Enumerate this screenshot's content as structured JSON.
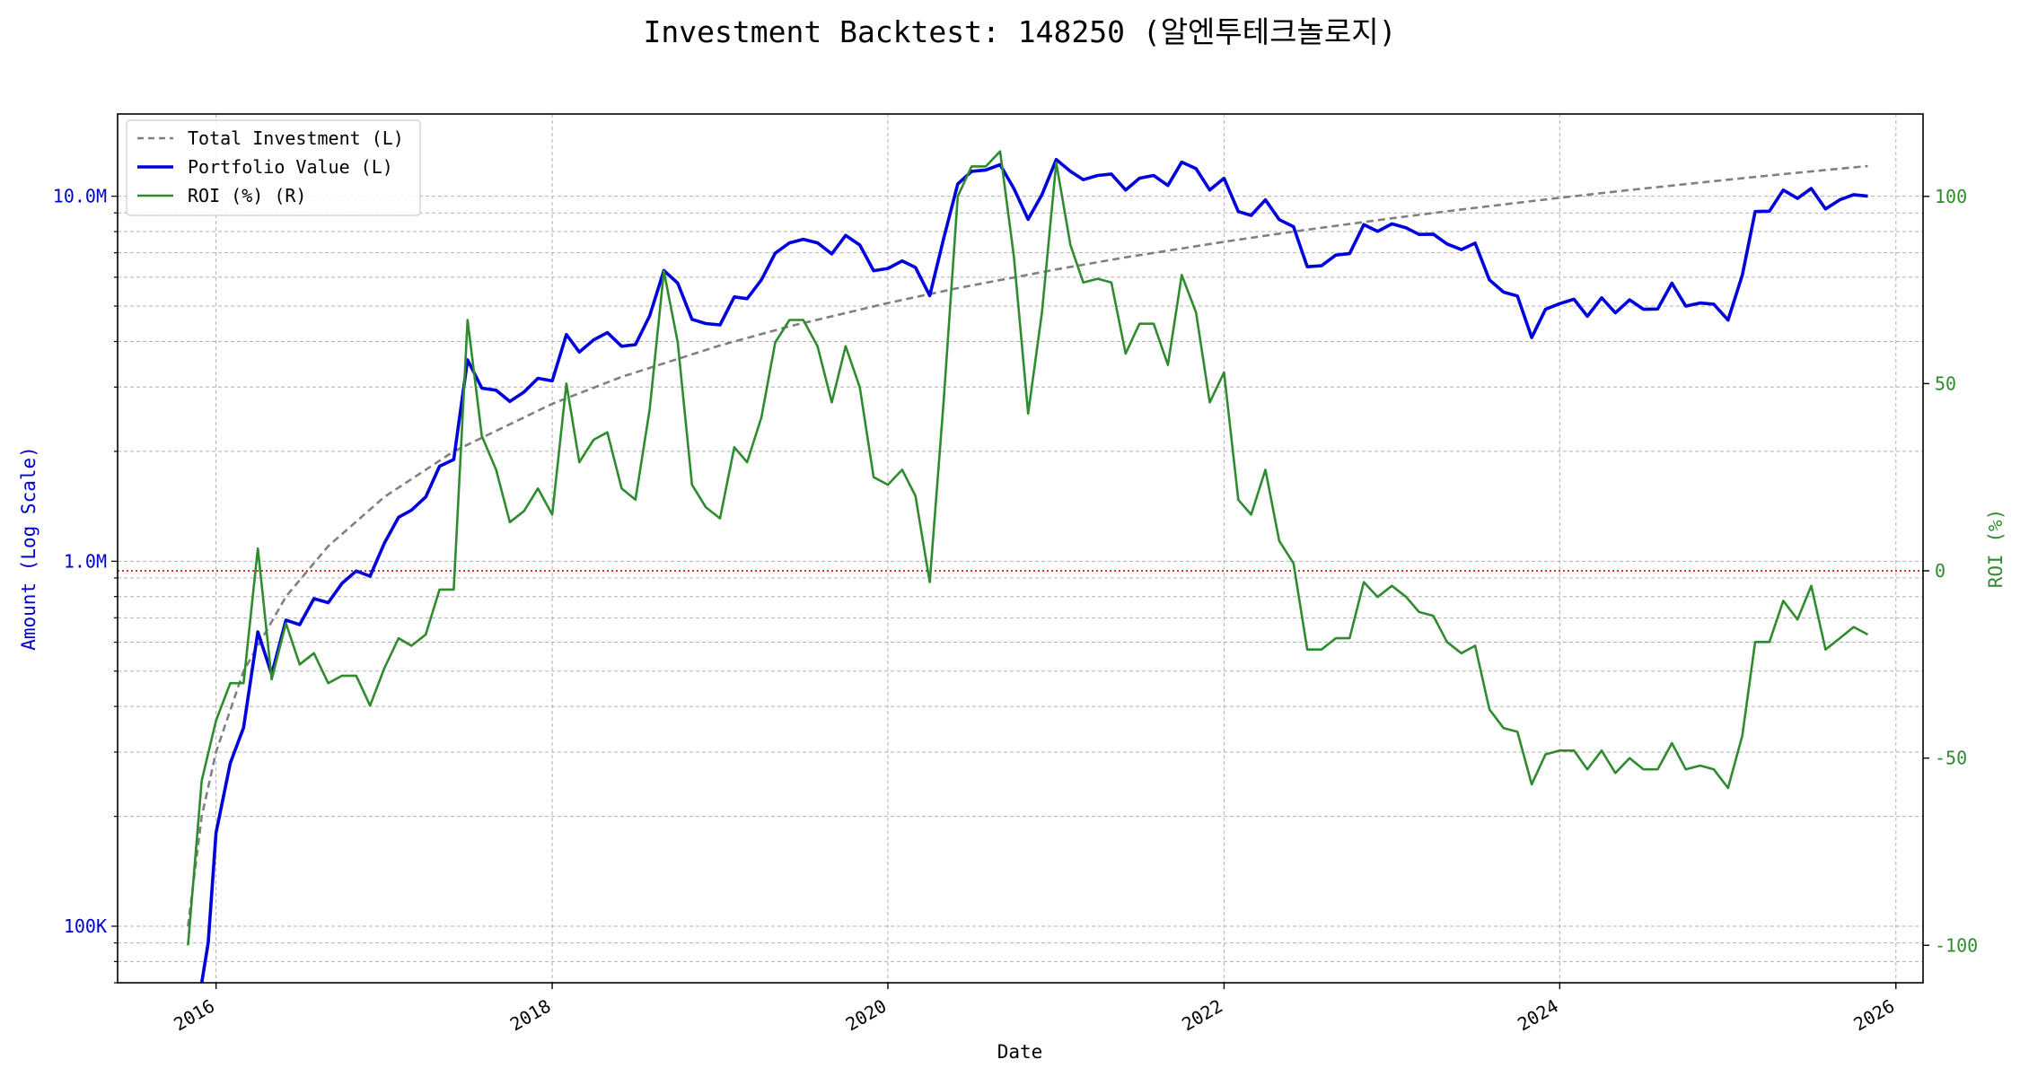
{
  "chart_data": {
    "type": "line",
    "title": "Investment Backtest: 148250 (알엔투테크놀로지)",
    "xlabel": "Date",
    "ylabel_left": "Amount (Log Scale)",
    "ylabel_right": "ROI (%)",
    "y_left_scale": "log",
    "y_left_range": [
      70000,
      16800000
    ],
    "y_right_range": [
      -110,
      122
    ],
    "x_range": [
      "2015-06-01",
      "2026-03-01"
    ],
    "x_ticks": [
      "2016",
      "2018",
      "2020",
      "2022",
      "2024",
      "2026"
    ],
    "y_left_ticks": [
      {
        "value": 100000,
        "label": "100K"
      },
      {
        "value": 1000000,
        "label": "1.0M"
      },
      {
        "value": 10000000,
        "label": "10.0M"
      }
    ],
    "y_right_ticks": [
      {
        "value": 100,
        "label": "100"
      },
      {
        "value": 50,
        "label": "50"
      },
      {
        "value": 0,
        "label": "0"
      },
      {
        "value": -50,
        "label": "-50"
      },
      {
        "value": -100,
        "label": "-100"
      }
    ],
    "grid": true,
    "legend_position": "top-left",
    "legend": [
      "Total Investment (L)",
      "Portfolio Value (L)",
      "ROI (%) (R)"
    ],
    "reference_line": {
      "axis": "right",
      "value": 0,
      "color": "#cc0000",
      "style": "dotted"
    },
    "colors": {
      "total_investment": "#808080",
      "portfolio_value": "#0000dd",
      "roi": "#2e8b2e",
      "left_axis": "#0000cc",
      "right_axis": "#2e8b2e"
    },
    "total_investment": {
      "name": "Total Investment (L)",
      "dates": [
        "2015-11-01",
        "2015-12-01",
        "2016-01-01",
        "2016-03-01",
        "2016-06-01",
        "2016-09-01",
        "2017-01-01",
        "2017-06-01",
        "2018-01-01",
        "2018-06-01",
        "2019-01-01",
        "2019-06-01",
        "2020-01-01",
        "2020-06-01",
        "2021-01-01",
        "2021-06-01",
        "2022-01-01",
        "2022-06-01",
        "2023-01-01",
        "2023-06-01",
        "2024-01-01",
        "2024-06-01",
        "2025-01-01",
        "2025-06-01",
        "2025-11-01"
      ],
      "values": [
        100000,
        200000,
        300000,
        500000,
        800000,
        1100000,
        1500000,
        2000000,
        2700000,
        3200000,
        3900000,
        4400000,
        5100000,
        5600000,
        6300000,
        6800000,
        7500000,
        8000000,
        8700000,
        9200000,
        9900000,
        10400000,
        11100000,
        11600000,
        12100000
      ]
    },
    "series": [
      {
        "name": "Portfolio Value (L)",
        "axis": "left",
        "dates": [
          "2015-12-01",
          "2015-12-15",
          "2016-01-01",
          "2016-02-01",
          "2016-03-01",
          "2016-04-01",
          "2016-05-01",
          "2016-06-01",
          "2016-07-01",
          "2016-08-01",
          "2016-09-01",
          "2016-10-01",
          "2016-11-01",
          "2016-12-01",
          "2017-01-01",
          "2017-02-01",
          "2017-03-01",
          "2017-04-01",
          "2017-05-01",
          "2017-06-01",
          "2017-07-01",
          "2017-08-01",
          "2017-09-01",
          "2017-10-01",
          "2017-11-01",
          "2017-12-01",
          "2018-01-01",
          "2018-02-01",
          "2018-03-01",
          "2018-04-01",
          "2018-05-01",
          "2018-06-01",
          "2018-07-01",
          "2018-08-01",
          "2018-09-01",
          "2018-10-01",
          "2018-11-01",
          "2018-12-01",
          "2019-01-01",
          "2019-02-01",
          "2019-03-01",
          "2019-04-01",
          "2019-05-01",
          "2019-06-01",
          "2019-07-01",
          "2019-08-01",
          "2019-09-01",
          "2019-10-01",
          "2019-11-01",
          "2019-12-01",
          "2020-01-01",
          "2020-02-01",
          "2020-03-01",
          "2020-04-01",
          "2020-05-01",
          "2020-06-01",
          "2020-07-01",
          "2020-08-01",
          "2020-09-01",
          "2020-10-01",
          "2020-11-01",
          "2020-12-01",
          "2021-01-01",
          "2021-02-01",
          "2021-03-01",
          "2021-04-01",
          "2021-05-01",
          "2021-06-01",
          "2021-07-01",
          "2021-08-01",
          "2021-09-01",
          "2021-10-01",
          "2021-11-01",
          "2021-12-01",
          "2022-01-01",
          "2022-02-01",
          "2022-03-01",
          "2022-04-01",
          "2022-05-01",
          "2022-06-01",
          "2022-07-01",
          "2022-08-01",
          "2022-09-01",
          "2022-10-01",
          "2022-11-01",
          "2022-12-01",
          "2023-01-01",
          "2023-02-01",
          "2023-03-01",
          "2023-04-01",
          "2023-05-01",
          "2023-06-01",
          "2023-07-01",
          "2023-08-01",
          "2023-09-01",
          "2023-10-01",
          "2023-11-01",
          "2023-12-01",
          "2024-01-01",
          "2024-02-01",
          "2024-03-01",
          "2024-04-01",
          "2024-05-01",
          "2024-06-01",
          "2024-07-01",
          "2024-08-01",
          "2024-09-01",
          "2024-10-01",
          "2024-11-01",
          "2024-12-01",
          "2025-01-01",
          "2025-02-01",
          "2025-03-01",
          "2025-04-01",
          "2025-05-01",
          "2025-06-01",
          "2025-07-01",
          "2025-08-01",
          "2025-09-01",
          "2025-10-01",
          "2025-11-01"
        ],
        "values": [
          70000,
          90000,
          180000,
          280000,
          350000,
          640000,
          490000,
          690000,
          670000,
          790000,
          770000,
          870000,
          940000,
          910000,
          1120000,
          1320000,
          1380000,
          1500000,
          1820000,
          1900000,
          3560000,
          2980000,
          2940000,
          2740000,
          2910000,
          3170000,
          3120000,
          4180000,
          3740000,
          4040000,
          4230000,
          3880000,
          3920000,
          4700000,
          6260000,
          5780000,
          4600000,
          4480000,
          4440000,
          5300000,
          5240000,
          5900000,
          6980000,
          7450000,
          7620000,
          7450000,
          6950000,
          7810000,
          7350000,
          6250000,
          6340000,
          6650000,
          6380000,
          5340000,
          7640000,
          10800000,
          11700000,
          11800000,
          12200000,
          10500000,
          8640000,
          10100000,
          12600000,
          11700000,
          11100000,
          11400000,
          11500000,
          10400000,
          11200000,
          11400000,
          10700000,
          12400000,
          11900000,
          10400000,
          11200000,
          9080000,
          8860000,
          9770000,
          8630000,
          8250000,
          6410000,
          6450000,
          6900000,
          6960000,
          8360000,
          8010000,
          8400000,
          8190000,
          7860000,
          7870000,
          7400000,
          7140000,
          7440000,
          5900000,
          5460000,
          5330000,
          4100000,
          4900000,
          5080000,
          5220000,
          4690000,
          5270000,
          4790000,
          5200000,
          4900000,
          4910000,
          5780000,
          5000000,
          5100000,
          5060000,
          4580000,
          6080000,
          9080000,
          9100000,
          10400000,
          9860000,
          10500000,
          9230000,
          9780000,
          10100000,
          10000000
        ]
      },
      {
        "name": "ROI (%) (R)",
        "axis": "right",
        "dates": [
          "2015-11-01",
          "2015-12-01",
          "2016-01-01",
          "2016-02-01",
          "2016-03-01",
          "2016-04-01",
          "2016-05-01",
          "2016-06-01",
          "2016-07-01",
          "2016-08-01",
          "2016-09-01",
          "2016-10-01",
          "2016-11-01",
          "2016-12-01",
          "2017-01-01",
          "2017-02-01",
          "2017-03-01",
          "2017-04-01",
          "2017-05-01",
          "2017-06-01",
          "2017-07-01",
          "2017-08-01",
          "2017-09-01",
          "2017-10-01",
          "2017-11-01",
          "2017-12-01",
          "2018-01-01",
          "2018-02-01",
          "2018-03-01",
          "2018-04-01",
          "2018-05-01",
          "2018-06-01",
          "2018-07-01",
          "2018-08-01",
          "2018-09-01",
          "2018-10-01",
          "2018-11-01",
          "2018-12-01",
          "2019-01-01",
          "2019-02-01",
          "2019-03-01",
          "2019-04-01",
          "2019-05-01",
          "2019-06-01",
          "2019-07-01",
          "2019-08-01",
          "2019-09-01",
          "2019-10-01",
          "2019-11-01",
          "2019-12-01",
          "2020-01-01",
          "2020-02-01",
          "2020-03-01",
          "2020-04-01",
          "2020-05-01",
          "2020-06-01",
          "2020-07-01",
          "2020-08-01",
          "2020-09-01",
          "2020-10-01",
          "2020-11-01",
          "2020-12-01",
          "2021-01-01",
          "2021-02-01",
          "2021-03-01",
          "2021-04-01",
          "2021-05-01",
          "2021-06-01",
          "2021-07-01",
          "2021-08-01",
          "2021-09-01",
          "2021-10-01",
          "2021-11-01",
          "2021-12-01",
          "2022-01-01",
          "2022-02-01",
          "2022-03-01",
          "2022-04-01",
          "2022-05-01",
          "2022-06-01",
          "2022-07-01",
          "2022-08-01",
          "2022-09-01",
          "2022-10-01",
          "2022-11-01",
          "2022-12-01",
          "2023-01-01",
          "2023-02-01",
          "2023-03-01",
          "2023-04-01",
          "2023-05-01",
          "2023-06-01",
          "2023-07-01",
          "2023-08-01",
          "2023-09-01",
          "2023-10-01",
          "2023-11-01",
          "2023-12-01",
          "2024-01-01",
          "2024-02-01",
          "2024-03-01",
          "2024-04-01",
          "2024-05-01",
          "2024-06-01",
          "2024-07-01",
          "2024-08-01",
          "2024-09-01",
          "2024-10-01",
          "2024-11-01",
          "2024-12-01",
          "2025-01-01",
          "2025-02-01",
          "2025-03-01",
          "2025-04-01",
          "2025-05-01",
          "2025-06-01",
          "2025-07-01",
          "2025-08-01",
          "2025-09-01",
          "2025-10-01",
          "2025-11-01"
        ],
        "values": [
          -100,
          -56,
          -40,
          -30,
          -30,
          6,
          -29,
          -14,
          -25,
          -22,
          -30,
          -28,
          -28,
          -36,
          -26,
          -18,
          -20,
          -17,
          -5,
          -5,
          67,
          36,
          27,
          13,
          16,
          22,
          15,
          50,
          29,
          35,
          37,
          22,
          19,
          43,
          80,
          61,
          23,
          17,
          14,
          33,
          29,
          41,
          61,
          67,
          67,
          60,
          45,
          60,
          49,
          25,
          23,
          27,
          20,
          -3,
          45,
          100,
          108,
          108,
          112,
          84,
          42,
          69,
          109,
          87,
          77,
          78,
          77,
          58,
          66,
          66,
          55,
          79,
          69,
          45,
          53,
          19,
          15,
          27,
          8,
          2,
          -21,
          -21,
          -18,
          -18,
          -3,
          -7,
          -4,
          -7,
          -11,
          -12,
          -19,
          -22,
          -20,
          -37,
          -42,
          -43,
          -57,
          -49,
          -48,
          -48,
          -53,
          -48,
          -54,
          -50,
          -53,
          -53,
          -46,
          -53,
          -52,
          -53,
          -58,
          -44,
          -19,
          -19,
          -8,
          -13,
          -4,
          -21,
          -18,
          -15,
          -17
        ]
      }
    ]
  }
}
